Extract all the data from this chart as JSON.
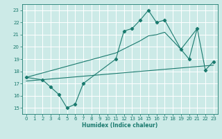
{
  "xlabel": "Humidex (Indice chaleur)",
  "bg_color": "#cceae7",
  "grid_color": "#ffffff",
  "line_color": "#1a7a6e",
  "xlim": [
    -0.5,
    23.5
  ],
  "ylim": [
    14.5,
    23.5
  ],
  "xticks": [
    0,
    1,
    2,
    3,
    4,
    5,
    6,
    7,
    8,
    9,
    10,
    11,
    12,
    13,
    14,
    15,
    16,
    17,
    18,
    19,
    20,
    21,
    22,
    23
  ],
  "yticks": [
    15,
    16,
    17,
    18,
    19,
    20,
    21,
    22,
    23
  ],
  "series": [
    {
      "x": [
        0,
        2,
        3,
        4,
        5,
        6,
        7,
        11,
        12,
        13,
        14,
        15,
        16,
        17,
        19,
        20,
        21,
        22,
        23
      ],
      "y": [
        17.5,
        17.3,
        16.7,
        16.1,
        15.0,
        15.3,
        17.0,
        19.0,
        21.3,
        21.5,
        22.2,
        23.0,
        22.0,
        22.2,
        19.8,
        19.0,
        21.5,
        18.1,
        18.8
      ],
      "has_markers": true
    },
    {
      "x": [
        0,
        11,
        14,
        15,
        16,
        17,
        19,
        21
      ],
      "y": [
        17.5,
        19.5,
        20.5,
        20.9,
        21.0,
        21.2,
        19.8,
        21.5
      ],
      "has_markers": false
    },
    {
      "x": [
        0,
        23
      ],
      "y": [
        17.2,
        18.5
      ],
      "has_markers": false
    }
  ]
}
